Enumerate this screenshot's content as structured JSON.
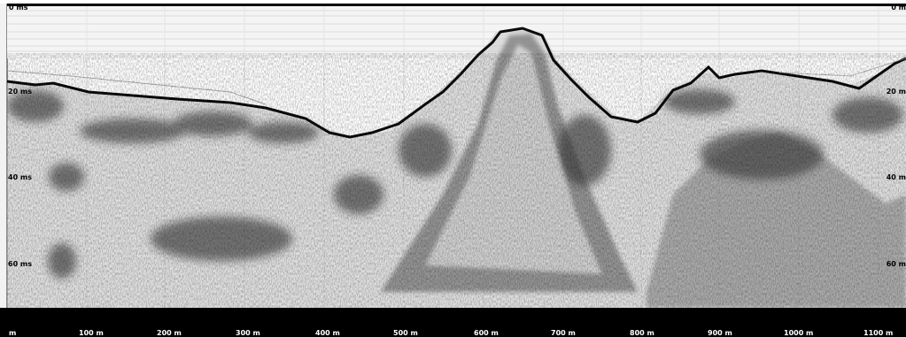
{
  "time_axis": {
    "left_labels": [
      "0 ms",
      "20 ms",
      "40 ms",
      "60 ms"
    ],
    "right_labels": [
      "0 m",
      "20 m",
      "40 m",
      "60 m"
    ]
  },
  "distance_axis": {
    "labels": [
      "m",
      "100 m",
      "200 m",
      "300 m",
      "400 m",
      "500 m",
      "600 m",
      "700 m",
      "800 m",
      "900 m",
      "1000 m",
      "1100 m"
    ]
  }
}
